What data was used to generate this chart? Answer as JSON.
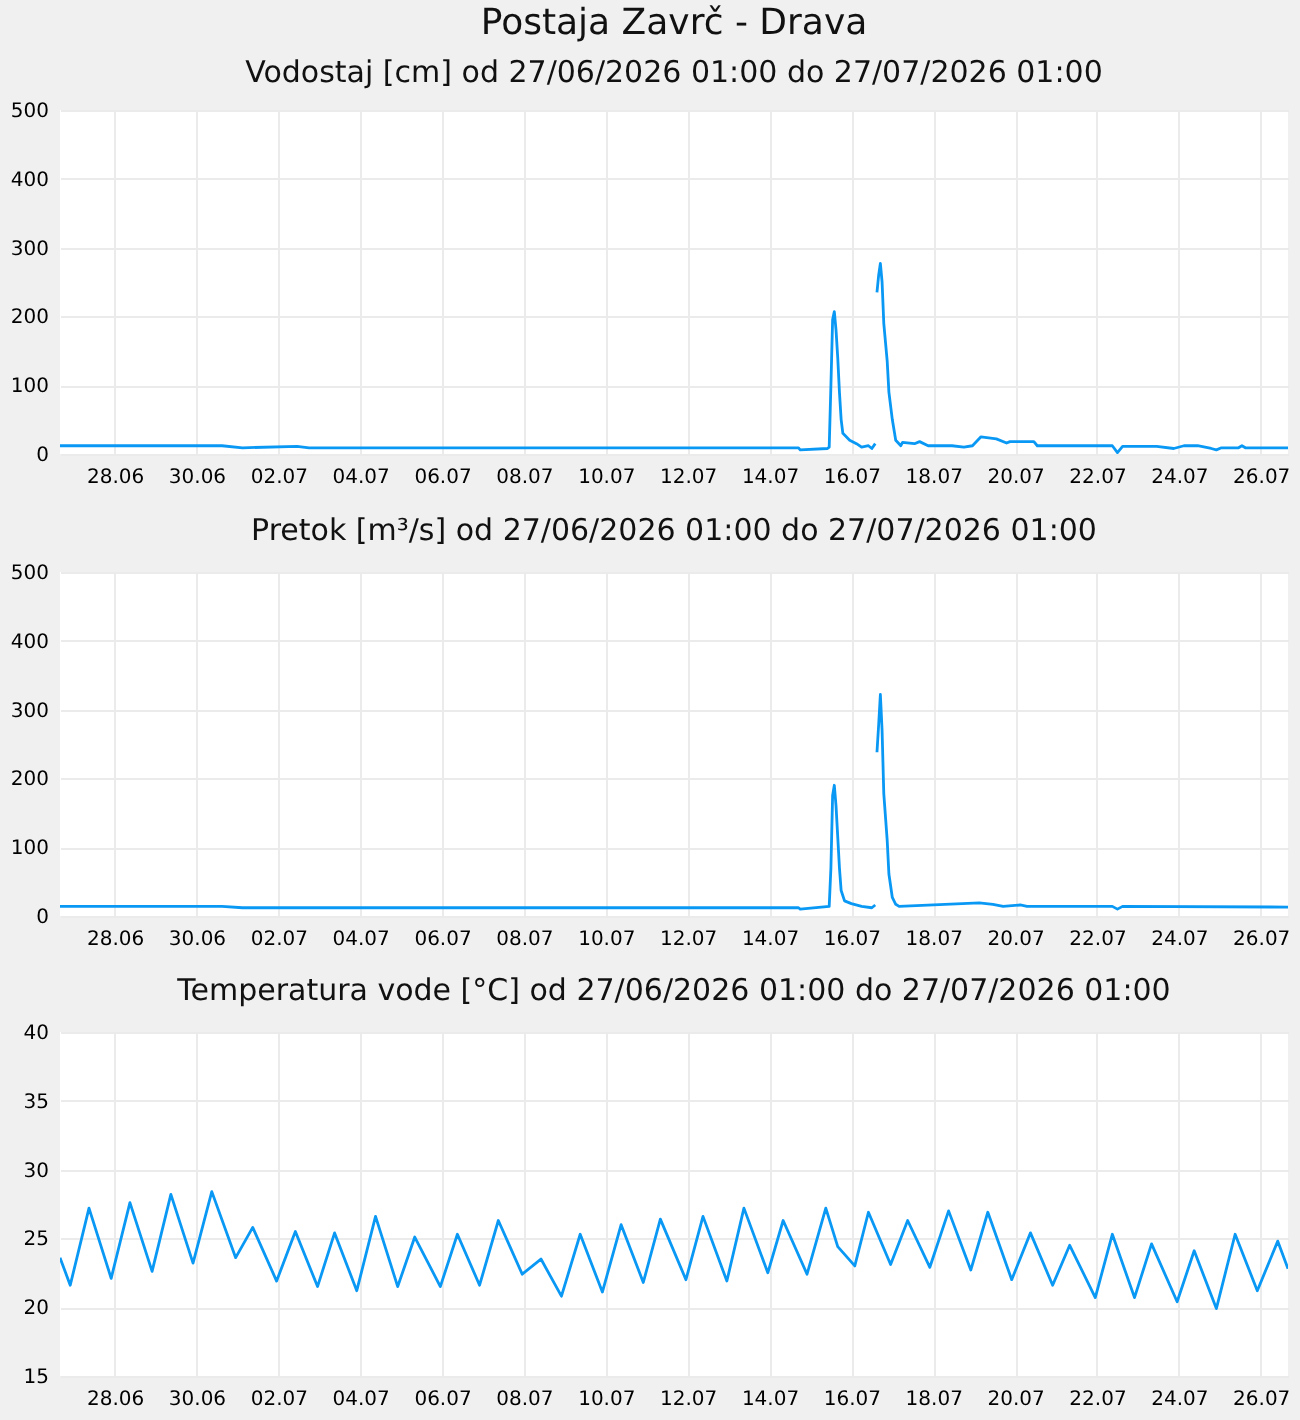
{
  "chart_data": [
    {
      "type": "line",
      "title": "Postaja Zavrč - Drava",
      "subtitle": "Vodostaj [cm] od 27/06/2026 01:00 do 27/07/2026 01:00",
      "x": [
        "2026-06-27T01:00",
        "2026-07-01T00:00",
        "2026-07-01T12:00",
        "2026-07-02T20:00",
        "2026-07-03T03:00",
        "2026-07-15T02:00",
        "2026-07-15T03:00",
        "2026-07-15T19:00",
        "2026-07-15T20:00",
        "2026-07-15T21:00",
        "2026-07-15T22:00",
        "2026-07-15T23:00",
        "2026-07-16T00:00",
        "2026-07-16T01:00",
        "2026-07-16T02:00",
        "2026-07-16T03:00",
        "2026-07-16T04:00",
        "2026-07-16T08:00",
        "2026-07-16T12:00",
        "2026-07-16T15:00",
        "2026-07-16T19:00",
        "2026-07-16T21:00",
        "2026-07-16T23:00",
        "2026-07-16T23:30",
        "2026-07-17T00:00",
        "2026-07-17T01:00",
        "2026-07-17T02:00",
        "2026-07-17T03:00",
        "2026-07-17T04:00",
        "2026-07-17T06:00",
        "2026-07-17T07:00",
        "2026-07-17T09:00",
        "2026-07-17T11:00",
        "2026-07-17T14:00",
        "2026-07-17T15:00",
        "2026-07-17T22:00",
        "2026-07-18T01:00",
        "2026-07-18T06:00",
        "2026-07-18T20:00",
        "2026-07-19T03:00",
        "2026-07-19T08:00",
        "2026-07-19T13:00",
        "2026-07-19T22:00",
        "2026-07-20T04:00",
        "2026-07-20T06:00",
        "2026-07-20T20:00",
        "2026-07-20T22:00",
        "2026-07-22T18:00",
        "2026-07-22T21:00",
        "2026-07-23T00:00",
        "2026-07-23T20:00",
        "2026-07-24T06:00",
        "2026-07-24T12:00",
        "2026-07-24T20:00",
        "2026-07-25T04:00",
        "2026-07-25T07:00",
        "2026-07-25T10:00",
        "2026-07-25T20:00",
        "2026-07-25T22:00",
        "2026-07-26T00:00",
        "2026-07-27T01:00"
      ],
      "series": [
        {
          "color": "#0a98f5",
          "values": [
            12,
            12,
            9,
            11,
            9,
            9,
            6,
            8,
            10,
            100,
            195,
            207,
            180,
            140,
            90,
            50,
            30,
            20,
            15,
            10,
            12,
            8,
            15,
            null,
            235,
            260,
            277,
            250,
            190,
            135,
            90,
            50,
            20,
            12,
            17,
            15,
            18,
            12,
            12,
            10,
            12,
            25,
            22,
            16,
            18,
            18,
            12,
            12,
            2,
            11,
            11,
            8,
            12,
            12,
            8,
            6,
            9,
            9,
            12,
            9,
            9
          ]
        }
      ],
      "xlim": [
        "2026-06-27T01:00",
        "2026-07-27T01:00"
      ],
      "xticks": [
        {
          "value": "2026-06-28T09:00",
          "label": "28.06"
        },
        {
          "value": "2026-06-30T09:00",
          "label": "30.06"
        },
        {
          "value": "2026-07-02T09:00",
          "label": "02.07"
        },
        {
          "value": "2026-07-04T09:00",
          "label": "04.07"
        },
        {
          "value": "2026-07-06T09:00",
          "label": "06.07"
        },
        {
          "value": "2026-07-08T09:00",
          "label": "08.07"
        },
        {
          "value": "2026-07-10T09:00",
          "label": "10.07"
        },
        {
          "value": "2026-07-12T09:00",
          "label": "12.07"
        },
        {
          "value": "2026-07-14T09:00",
          "label": "14.07"
        },
        {
          "value": "2026-07-16T09:00",
          "label": "16.07"
        },
        {
          "value": "2026-07-18T09:00",
          "label": "18.07"
        },
        {
          "value": "2026-07-20T09:00",
          "label": "20.07"
        },
        {
          "value": "2026-07-22T09:00",
          "label": "22.07"
        },
        {
          "value": "2026-07-24T09:00",
          "label": "24.07"
        },
        {
          "value": "2026-07-26T09:00",
          "label": "26.07"
        }
      ],
      "ylim": [
        0,
        500
      ],
      "yticks": [
        0,
        100,
        200,
        300,
        400,
        500
      ],
      "grid": true
    },
    {
      "type": "line",
      "title": "Pretok [m³/s] od 27/06/2026 01:00 do 27/07/2026 01:00",
      "x": [
        "2026-06-27T01:00",
        "2026-07-01T00:00",
        "2026-07-01T12:00",
        "2026-07-15T02:00",
        "2026-07-15T03:00",
        "2026-07-15T20:00",
        "2026-07-15T21:00",
        "2026-07-15T22:00",
        "2026-07-15T23:00",
        "2026-07-16T00:00",
        "2026-07-16T01:00",
        "2026-07-16T02:00",
        "2026-07-16T03:00",
        "2026-07-16T05:00",
        "2026-07-16T09:00",
        "2026-07-16T15:00",
        "2026-07-16T21:00",
        "2026-07-16T23:00",
        "2026-07-16T23:30",
        "2026-07-17T00:00",
        "2026-07-17T01:00",
        "2026-07-17T02:00",
        "2026-07-17T03:00",
        "2026-07-17T04:00",
        "2026-07-17T06:00",
        "2026-07-17T07:00",
        "2026-07-17T09:00",
        "2026-07-17T11:00",
        "2026-07-17T13:00",
        "2026-07-19T12:00",
        "2026-07-19T20:00",
        "2026-07-20T02:00",
        "2026-07-20T12:00",
        "2026-07-20T16:00",
        "2026-07-22T18:00",
        "2026-07-22T21:00",
        "2026-07-23T00:00",
        "2026-07-27T01:00"
      ],
      "series": [
        {
          "color": "#0a98f5",
          "values": [
            14,
            14,
            12,
            12,
            10,
            14,
            70,
            175,
            190,
            160,
            115,
            70,
            37,
            22,
            18,
            14,
            12,
            16,
            null,
            238,
            278,
            322,
            270,
            178,
            110,
            61,
            27,
            17,
            14,
            19,
            17,
            14,
            16,
            14,
            14,
            10,
            14,
            13
          ]
        }
      ],
      "xlim": [
        "2026-06-27T01:00",
        "2026-07-27T01:00"
      ],
      "xticks": [
        {
          "value": "2026-06-28T09:00",
          "label": "28.06"
        },
        {
          "value": "2026-06-30T09:00",
          "label": "30.06"
        },
        {
          "value": "2026-07-02T09:00",
          "label": "02.07"
        },
        {
          "value": "2026-07-04T09:00",
          "label": "04.07"
        },
        {
          "value": "2026-07-06T09:00",
          "label": "06.07"
        },
        {
          "value": "2026-07-08T09:00",
          "label": "08.07"
        },
        {
          "value": "2026-07-10T09:00",
          "label": "10.07"
        },
        {
          "value": "2026-07-12T09:00",
          "label": "12.07"
        },
        {
          "value": "2026-07-14T09:00",
          "label": "14.07"
        },
        {
          "value": "2026-07-16T09:00",
          "label": "16.07"
        },
        {
          "value": "2026-07-18T09:00",
          "label": "18.07"
        },
        {
          "value": "2026-07-20T09:00",
          "label": "20.07"
        },
        {
          "value": "2026-07-22T09:00",
          "label": "22.07"
        },
        {
          "value": "2026-07-24T09:00",
          "label": "24.07"
        },
        {
          "value": "2026-07-26T09:00",
          "label": "26.07"
        }
      ],
      "ylim": [
        0,
        500
      ],
      "yticks": [
        0,
        100,
        200,
        300,
        400,
        500
      ],
      "grid": true
    },
    {
      "type": "line",
      "title": "Temperatura vode [°C] od 27/06/2026 01:00 do 27/07/2026 01:00",
      "x": [
        "2026-06-27T01:00",
        "2026-06-27T07:00",
        "2026-06-27T18:00",
        "2026-06-28T07:00",
        "2026-06-28T18:00",
        "2026-06-29T07:00",
        "2026-06-29T18:00",
        "2026-06-30T07:00",
        "2026-06-30T18:00",
        "2026-07-01T08:00",
        "2026-07-01T18:00",
        "2026-07-02T08:00",
        "2026-07-02T19:00",
        "2026-07-03T08:00",
        "2026-07-03T18:00",
        "2026-07-04T07:00",
        "2026-07-04T18:00",
        "2026-07-05T07:00",
        "2026-07-05T17:00",
        "2026-07-06T08:00",
        "2026-07-06T18:00",
        "2026-07-07T07:00",
        "2026-07-07T18:00",
        "2026-07-08T08:00",
        "2026-07-08T19:00",
        "2026-07-09T07:00",
        "2026-07-09T18:00",
        "2026-07-10T07:00",
        "2026-07-10T18:00",
        "2026-07-11T07:00",
        "2026-07-11T17:00",
        "2026-07-12T08:00",
        "2026-07-12T18:00",
        "2026-07-13T08:00",
        "2026-07-13T18:00",
        "2026-07-14T08:00",
        "2026-07-14T17:00",
        "2026-07-15T07:00",
        "2026-07-15T18:00",
        "2026-07-16T01:00",
        "2026-07-16T11:00",
        "2026-07-16T19:00",
        "2026-07-17T08:00",
        "2026-07-17T18:00",
        "2026-07-18T07:00",
        "2026-07-18T18:00",
        "2026-07-19T07:00",
        "2026-07-19T17:00",
        "2026-07-20T07:00",
        "2026-07-20T18:00",
        "2026-07-21T07:00",
        "2026-07-21T17:00",
        "2026-07-22T08:00",
        "2026-07-22T18:00",
        "2026-07-23T07:00",
        "2026-07-23T17:00",
        "2026-07-24T08:00",
        "2026-07-24T18:00",
        "2026-07-25T07:00",
        "2026-07-25T18:00",
        "2026-07-26T07:00",
        "2026-07-26T19:00",
        "2026-07-27T01:00"
      ],
      "series": [
        {
          "color": "#0a98f5",
          "values": [
            23.6,
            21.6,
            27.2,
            22.1,
            27.6,
            22.6,
            28.2,
            23.2,
            28.4,
            23.6,
            25.8,
            21.9,
            25.5,
            21.5,
            25.4,
            21.2,
            26.6,
            21.5,
            25.1,
            21.5,
            25.3,
            21.6,
            26.3,
            22.4,
            23.5,
            20.8,
            25.3,
            21.1,
            26.0,
            21.8,
            26.4,
            22.0,
            26.6,
            21.9,
            27.2,
            22.5,
            26.3,
            22.4,
            27.2,
            24.4,
            23.0,
            26.9,
            23.1,
            26.3,
            22.9,
            27.0,
            22.7,
            26.9,
            22.0,
            25.4,
            21.6,
            24.5,
            20.7,
            25.3,
            20.7,
            24.6,
            20.4,
            24.1,
            19.9,
            25.3,
            21.2,
            24.8,
            22.8
          ]
        }
      ],
      "xlim": [
        "2026-06-27T01:00",
        "2026-07-27T01:00"
      ],
      "xticks": [
        {
          "value": "2026-06-28T09:00",
          "label": "28.06"
        },
        {
          "value": "2026-06-30T09:00",
          "label": "30.06"
        },
        {
          "value": "2026-07-02T09:00",
          "label": "02.07"
        },
        {
          "value": "2026-07-04T09:00",
          "label": "04.07"
        },
        {
          "value": "2026-07-06T09:00",
          "label": "06.07"
        },
        {
          "value": "2026-07-08T09:00",
          "label": "08.07"
        },
        {
          "value": "2026-07-10T09:00",
          "label": "10.07"
        },
        {
          "value": "2026-07-12T09:00",
          "label": "12.07"
        },
        {
          "value": "2026-07-14T09:00",
          "label": "14.07"
        },
        {
          "value": "2026-07-16T09:00",
          "label": "16.07"
        },
        {
          "value": "2026-07-18T09:00",
          "label": "18.07"
        },
        {
          "value": "2026-07-20T09:00",
          "label": "20.07"
        },
        {
          "value": "2026-07-22T09:00",
          "label": "22.07"
        },
        {
          "value": "2026-07-24T09:00",
          "label": "24.07"
        },
        {
          "value": "2026-07-26T09:00",
          "label": "26.07"
        }
      ],
      "ylim": [
        15,
        40
      ],
      "yticks": [
        15,
        20,
        25,
        30,
        35,
        40
      ],
      "grid": true
    }
  ]
}
